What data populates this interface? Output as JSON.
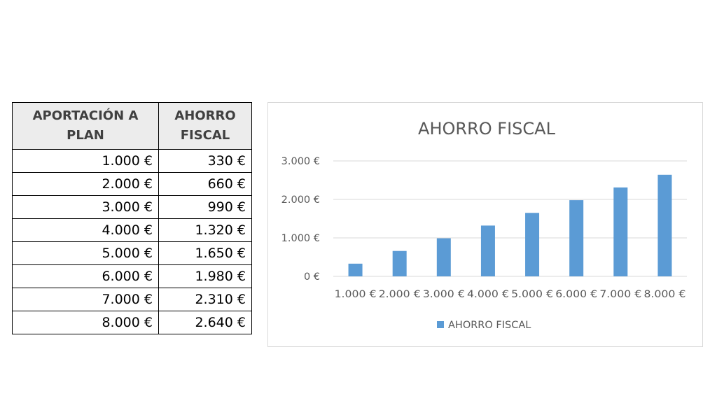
{
  "table": {
    "headers": [
      "APORTACIÓN A PLAN",
      "AHORRO FISCAL"
    ],
    "rows": [
      [
        "1.000 €",
        "330 €"
      ],
      [
        "2.000 €",
        "660 €"
      ],
      [
        "3.000 €",
        "990 €"
      ],
      [
        "4.000 €",
        "1.320 €"
      ],
      [
        "5.000 €",
        "1.650 €"
      ],
      [
        "6.000 €",
        "1.980 €"
      ],
      [
        "7.000 €",
        "2.310 €"
      ],
      [
        "8.000 €",
        "2.640 €"
      ]
    ]
  },
  "chart_data": {
    "type": "bar",
    "title": "AHORRO FISCAL",
    "categories": [
      "1.000 €",
      "2.000 €",
      "3.000 €",
      "4.000 €",
      "5.000 €",
      "6.000 €",
      "7.000 €",
      "8.000 €"
    ],
    "series": [
      {
        "name": "AHORRO FISCAL",
        "values": [
          330,
          660,
          990,
          1320,
          1650,
          1980,
          2310,
          2640
        ],
        "color": "#5b9bd5"
      }
    ],
    "ylim": [
      0,
      3000
    ],
    "yticks": [
      0,
      1000,
      2000,
      3000
    ],
    "ytick_labels": [
      "0 €",
      "1.000 €",
      "2.000 €",
      "3.000 €"
    ],
    "xlabel": "",
    "ylabel": "",
    "grid": true,
    "legend_position": "bottom"
  }
}
